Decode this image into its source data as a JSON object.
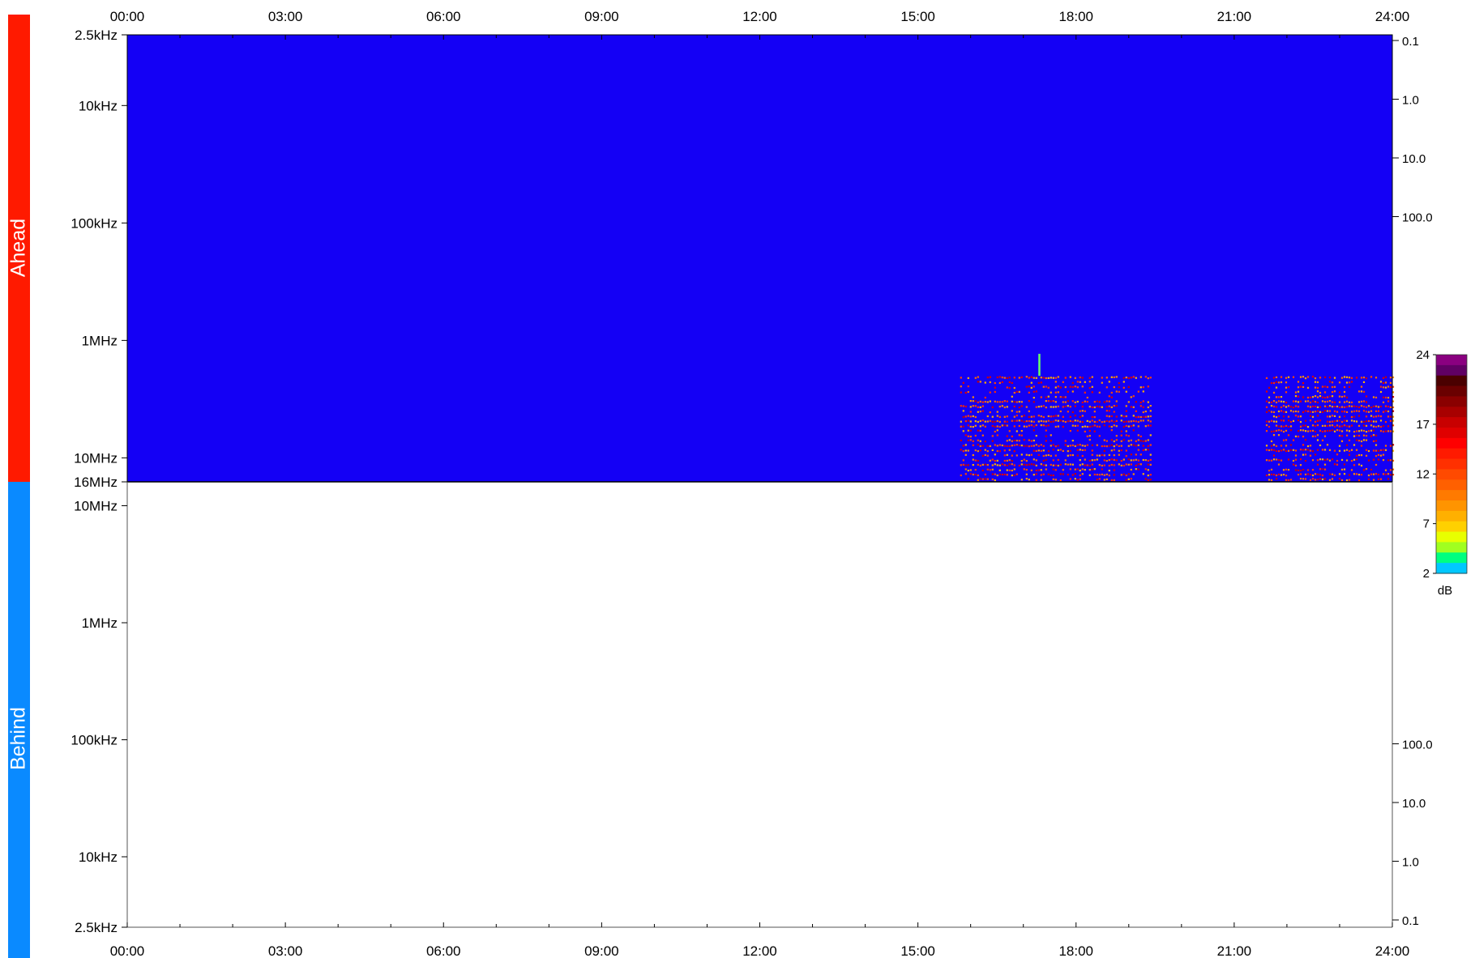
{
  "panels": {
    "ahead_label": "Ahead",
    "behind_label": "Behind",
    "ahead_color": "#ff1a00",
    "behind_color": "#0a8aff"
  },
  "chart_data": {
    "type": "heatmap",
    "time_ticks": [
      "00:00",
      "03:00",
      "06:00",
      "09:00",
      "12:00",
      "15:00",
      "18:00",
      "21:00",
      "24:00"
    ],
    "x_range_hours": [
      0,
      24
    ],
    "ahead": {
      "background_color": "#1400f5",
      "freq_ticks": [
        "2.5kHz",
        "10kHz",
        "100kHz",
        "1MHz",
        "10MHz",
        "16MHz"
      ],
      "freq_tick_values_hz": [
        2500,
        10000,
        100000,
        1000000,
        10000000,
        16000000
      ],
      "freq_range_hz": [
        2500,
        16000000
      ],
      "right_ticks": [
        "0.1",
        "1.0",
        "10.0",
        "100.0"
      ],
      "right_tick_values": [
        0.1,
        1.0,
        10.0,
        100.0
      ],
      "activity_bursts": [
        {
          "start_h": 15.8,
          "end_h": 19.4,
          "freq_low_hz": 2000000,
          "freq_high_hz": 16000000
        },
        {
          "start_h": 21.6,
          "end_h": 24.0,
          "freq_low_hz": 2000000,
          "freq_high_hz": 16000000
        }
      ],
      "spike": {
        "time_h": 17.3,
        "freq_low_hz": 1300000,
        "freq_high_hz": 2000000
      }
    },
    "behind": {
      "freq_ticks": [
        "10MHz",
        "1MHz",
        "100kHz",
        "10kHz",
        "2.5kHz"
      ],
      "freq_tick_values_hz": [
        10000000,
        1000000,
        100000,
        10000,
        2500
      ],
      "right_ticks": [
        "100.0",
        "10.0",
        "1.0",
        "0.1"
      ],
      "right_tick_values": [
        100.0,
        10.0,
        1.0,
        0.1
      ]
    },
    "colorbar": {
      "ticks": [
        "24",
        "17",
        "12",
        "7",
        "2"
      ],
      "tick_values": [
        24,
        17,
        12,
        7,
        2
      ],
      "range": [
        2,
        24
      ],
      "unit": "dB",
      "colors": [
        "#8a0080",
        "#600064",
        "#4a0000",
        "#6a0000",
        "#8a0000",
        "#a80000",
        "#c80000",
        "#e00000",
        "#ff0000",
        "#ff1a00",
        "#ff3000",
        "#ff4a00",
        "#ff6000",
        "#ff7a00",
        "#ff9400",
        "#ffb000",
        "#ffd000",
        "#e8ff00",
        "#a0ff20",
        "#00ff80",
        "#00c8ff"
      ]
    }
  }
}
